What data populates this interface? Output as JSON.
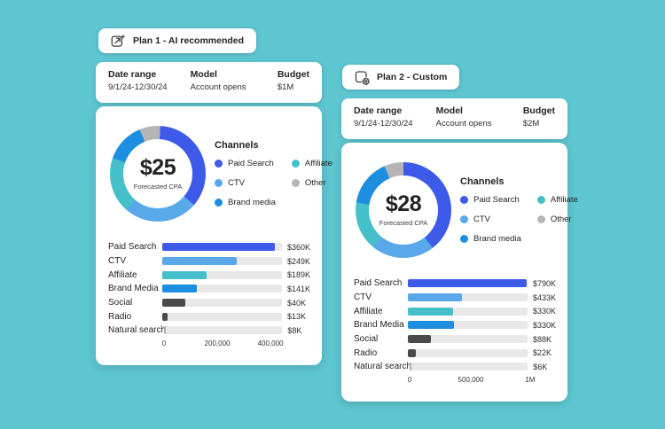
{
  "page": {
    "background": "#5DC6D1"
  },
  "palette": {
    "paid_search": "#3D5BE8",
    "ctv": "#59A8EA",
    "brand_media": "#1E8FE0",
    "affiliate": "#45BFC9",
    "other": "#B5B5B5",
    "dark_bar": "#4A4A4A",
    "light_bar": "#ABABAB",
    "track": "#E8E8E8"
  },
  "plan1": {
    "chip": {
      "label": "Plan 1 - AI recommended",
      "icon": "ai-plan-icon"
    },
    "info": {
      "columns": [
        {
          "label": "Date range",
          "value": "9/1/24-12/30/24"
        },
        {
          "label": "Model",
          "value": "Account opens"
        },
        {
          "label": "Budget",
          "value": "$1M"
        }
      ]
    },
    "donut": {
      "center_value": "$25",
      "center_label": "Forecasted CPA",
      "start_deg": 3,
      "segments": [
        {
          "name": "Paid Search",
          "pct": 35.5,
          "color": "#3D5BE8"
        },
        {
          "name": "CTV",
          "pct": 25,
          "color": "#59A8EA"
        },
        {
          "name": "Affiliate",
          "pct": 19,
          "color": "#45BFC9"
        },
        {
          "name": "Brand media",
          "pct": 13.5,
          "color": "#1E8FE0"
        },
        {
          "name": "Other",
          "pct": 7,
          "color": "#B5B5B5"
        }
      ]
    },
    "legend": {
      "title": "Channels",
      "items": [
        {
          "label": "Paid Search",
          "color": "#3D5BE8"
        },
        {
          "label": "CTV",
          "color": "#59A8EA"
        },
        {
          "label": "Brand media",
          "color": "#1E8FE0"
        },
        {
          "label": "Affiliate",
          "color": "#45BFC9"
        },
        {
          "label": "Other",
          "color": "#B5B5B5"
        }
      ]
    },
    "bars": {
      "rows": [
        {
          "label": "Paid Search",
          "value": "$360K",
          "pct": 94,
          "color": "#3D5BE8"
        },
        {
          "label": "CTV",
          "value": "$249K",
          "pct": 62,
          "color": "#59A8EA"
        },
        {
          "label": "Affiliate",
          "value": "$189K",
          "pct": 37,
          "color": "#45BFC9"
        },
        {
          "label": "Brand Media",
          "value": "$141K",
          "pct": 29,
          "color": "#1E8FE0"
        },
        {
          "label": "Social",
          "value": "$40K",
          "pct": 19,
          "color": "#4A4A4A"
        },
        {
          "label": "Radio",
          "value": "$13K",
          "pct": 4.5,
          "color": "#4A4A4A"
        },
        {
          "label": "Natural search",
          "value": "$8K",
          "pct": 1.7,
          "color": "#ABABAB"
        }
      ],
      "axis": [
        {
          "label": "0",
          "pos": 0
        },
        {
          "label": "200,000",
          "pos": 43.5
        },
        {
          "label": "400,000",
          "pos": 87
        }
      ]
    }
  },
  "plan2": {
    "chip": {
      "label": "Plan 2 - Custom",
      "icon": "gear-plan-icon"
    },
    "info": {
      "columns": [
        {
          "label": "Date range",
          "value": "9/1/24-12/30/24"
        },
        {
          "label": "Model",
          "value": "Account opens"
        },
        {
          "label": "Budget",
          "value": "$2M"
        }
      ]
    },
    "donut": {
      "center_value": "$28",
      "center_label": "Forecasted CPA",
      "start_deg": 0,
      "segments": [
        {
          "name": "Paid Search",
          "pct": 39.5,
          "color": "#3D5BE8"
        },
        {
          "name": "CTV",
          "pct": 21.5,
          "color": "#59A8EA"
        },
        {
          "name": "Affiliate",
          "pct": 16.5,
          "color": "#45BFC9"
        },
        {
          "name": "Brand media",
          "pct": 16,
          "color": "#1E8FE0"
        },
        {
          "name": "Other",
          "pct": 6.5,
          "color": "#B5B5B5"
        }
      ]
    },
    "legend": {
      "title": "Channels",
      "items": [
        {
          "label": "Paid Search",
          "color": "#3D5BE8"
        },
        {
          "label": "CTV",
          "color": "#59A8EA"
        },
        {
          "label": "Brand media",
          "color": "#1E8FE0"
        },
        {
          "label": "Affiliate",
          "color": "#45BFC9"
        },
        {
          "label": "Other",
          "color": "#B5B5B5"
        }
      ]
    },
    "bars": {
      "rows": [
        {
          "label": "Paid Search",
          "value": "$790K",
          "pct": 99,
          "color": "#3D5BE8"
        },
        {
          "label": "CTV",
          "value": "$433K",
          "pct": 45,
          "color": "#59A8EA"
        },
        {
          "label": "Affiliate",
          "value": "$330K",
          "pct": 37.5,
          "color": "#45BFC9"
        },
        {
          "label": "Brand Media",
          "value": "$330K",
          "pct": 38,
          "color": "#1E8FE0"
        },
        {
          "label": "Social",
          "value": "$88K",
          "pct": 19,
          "color": "#4A4A4A"
        },
        {
          "label": "Radio",
          "value": "$22K",
          "pct": 6,
          "color": "#4A4A4A"
        },
        {
          "label": "Natural search",
          "value": "$6K",
          "pct": 1.7,
          "color": "#ABABAB"
        }
      ],
      "axis": [
        {
          "label": "0",
          "pos": 0
        },
        {
          "label": "500,000",
          "pos": 50
        },
        {
          "label": "1M",
          "pos": 98.5
        }
      ]
    }
  },
  "chart_data": [
    {
      "type": "pie",
      "title": "Plan 1 channel mix — Forecasted CPA $25",
      "labels": [
        "Paid Search",
        "CTV",
        "Affiliate",
        "Brand media",
        "Other"
      ],
      "values_pct": [
        35.5,
        25,
        19,
        13.5,
        7
      ],
      "legend_position": "right"
    },
    {
      "type": "bar",
      "title": "Plan 1 spend by channel",
      "categories": [
        "Paid Search",
        "CTV",
        "Affiliate",
        "Brand Media",
        "Social",
        "Radio",
        "Natural search"
      ],
      "values": [
        360000,
        249000,
        189000,
        141000,
        40000,
        13000,
        8000
      ],
      "value_labels": [
        "$360K",
        "$249K",
        "$189K",
        "$141K",
        "$40K",
        "$13K",
        "$8K"
      ],
      "xlabel": "",
      "ylabel": "",
      "xlim": [
        0,
        440000
      ],
      "xticks": [
        "0",
        "200,000",
        "400,000"
      ],
      "orientation": "horizontal"
    },
    {
      "type": "pie",
      "title": "Plan 2 channel mix — Forecasted CPA $28",
      "labels": [
        "Paid Search",
        "CTV",
        "Affiliate",
        "Brand media",
        "Other"
      ],
      "values_pct": [
        39.5,
        21.5,
        16.5,
        16,
        6.5
      ],
      "legend_position": "right"
    },
    {
      "type": "bar",
      "title": "Plan 2 spend by channel",
      "categories": [
        "Paid Search",
        "CTV",
        "Affiliate",
        "Brand Media",
        "Social",
        "Radio",
        "Natural search"
      ],
      "values": [
        790000,
        433000,
        330000,
        330000,
        88000,
        22000,
        6000
      ],
      "value_labels": [
        "$790K",
        "$433K",
        "$330K",
        "$330K",
        "$88K",
        "$22K",
        "$6K"
      ],
      "xlabel": "",
      "ylabel": "",
      "xlim": [
        0,
        1020000
      ],
      "xticks": [
        "0",
        "500,000",
        "1M"
      ],
      "orientation": "horizontal"
    }
  ]
}
